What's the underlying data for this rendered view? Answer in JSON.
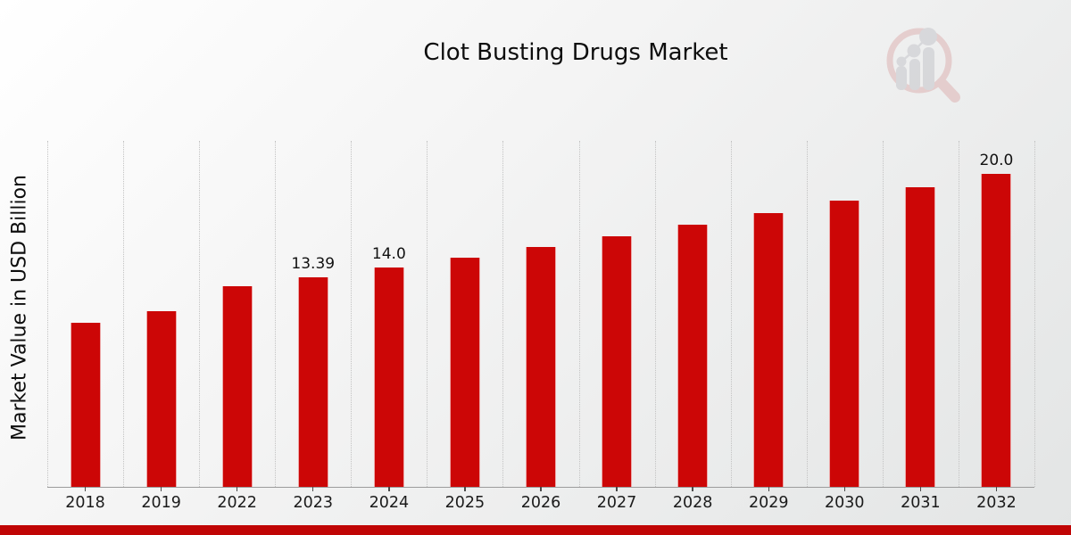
{
  "header": {
    "title": "Clot Busting Drugs Market"
  },
  "branding": {
    "logo_name": "market-research-future-logo",
    "ring_color": "#dcaeae",
    "bars_color": "#c2c2c8"
  },
  "footer": {
    "banner_color": "#c00505"
  },
  "chart_data": {
    "type": "bar",
    "title": "Clot Busting Drugs Market",
    "xlabel": "",
    "ylabel": "Market Value in USD Billion",
    "categories": [
      "2018",
      "2019",
      "2022",
      "2023",
      "2024",
      "2025",
      "2026",
      "2027",
      "2028",
      "2029",
      "2030",
      "2031",
      "2032"
    ],
    "values": [
      10.5,
      11.2,
      12.8,
      13.39,
      14.0,
      14.64,
      15.31,
      16.01,
      16.74,
      17.5,
      18.3,
      19.14,
      20.0
    ],
    "bar_labels": [
      "",
      "",
      "",
      "13.39",
      "14.0",
      "",
      "",
      "",
      "",
      "",
      "",
      "",
      "20.0"
    ],
    "bar_color": "#cc0606",
    "ylim": [
      0,
      22.1
    ],
    "grid": "vertical-dotted",
    "legend_position": "none",
    "units": "USD Billion"
  }
}
